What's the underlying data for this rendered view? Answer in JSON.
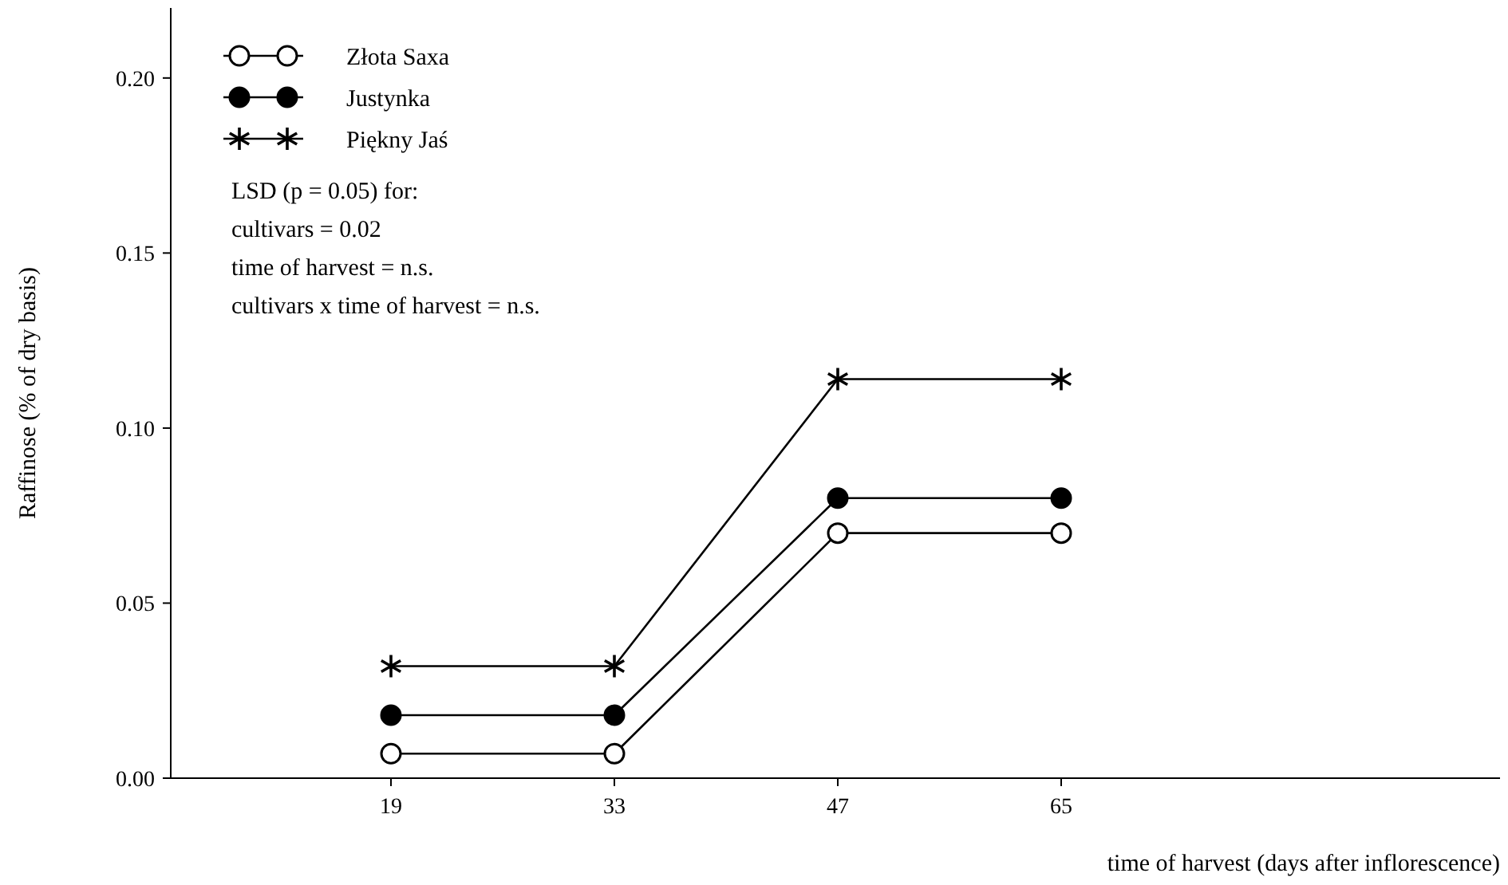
{
  "chart_data": {
    "type": "line",
    "xlabel": "time of harvest (days after inflorescence)",
    "ylabel": "Raffinose (% of dry basis)",
    "categories": [
      "19",
      "33",
      "47",
      "65"
    ],
    "series": [
      {
        "name": "Złota Saxa",
        "color": "#ffffff",
        "marker": "circle",
        "values": [
          0.007,
          0.007,
          0.07,
          0.07
        ]
      },
      {
        "name": "Justynka",
        "color": "#000000",
        "marker": "circle",
        "values": [
          0.018,
          0.018,
          0.08,
          0.08
        ]
      },
      {
        "name": "Piękny Jaś",
        "color": "#000000",
        "marker": "cross",
        "values": [
          0.032,
          0.032,
          0.114,
          0.114
        ]
      }
    ],
    "ylim": [
      0,
      0.22
    ],
    "yticks": [
      {
        "value": 0,
        "label": "0.00"
      },
      {
        "value": 0.05,
        "label": "0.05"
      },
      {
        "value": 0.1,
        "label": "0.10"
      },
      {
        "value": 0.15,
        "label": "0.15"
      },
      {
        "value": 0.2,
        "label": "0.20"
      }
    ],
    "legend": "top left",
    "grid": false,
    "line_style": "solid",
    "annotations": [
      "LSD (p = 0.05) for:",
      "cultivars = 0.02",
      "time of harvest  = n.s.",
      "cultivars x time of harvest = n.s."
    ]
  }
}
